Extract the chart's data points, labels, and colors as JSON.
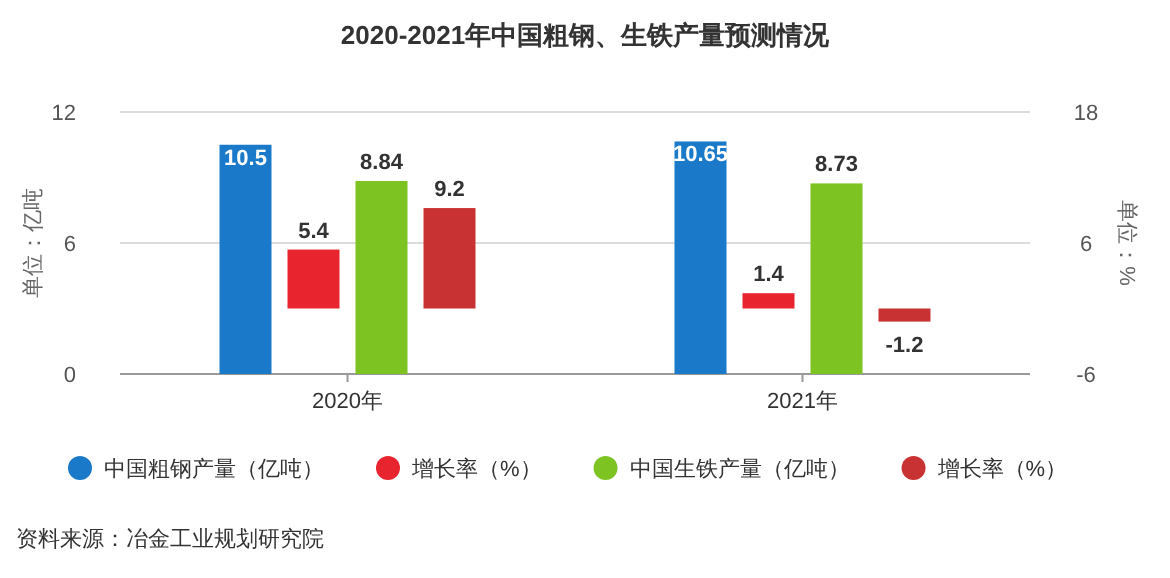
{
  "chart_data": {
    "type": "bar",
    "title": "2020-2021年中国粗钢、生铁产量预测情况",
    "categories": [
      "2020年",
      "2021年"
    ],
    "ylabel": "单位：亿吨",
    "y2label": "单位：%",
    "ylim": [
      0,
      12
    ],
    "yticks": [
      0,
      6,
      12
    ],
    "y2lim": [
      -6,
      18
    ],
    "y2ticks": [
      -6,
      6,
      18
    ],
    "series": [
      {
        "name": "中国粗钢产量（亿吨）",
        "color": "#1a7ac9",
        "values": [
          10.5,
          10.65
        ]
      },
      {
        "name": "增长率（%）",
        "color": "#e8242f",
        "values": [
          5.4,
          1.4
        ],
        "axis": "y2"
      },
      {
        "name": "中国生铁产量（亿吨）",
        "color": "#7dc423",
        "values": [
          8.84,
          8.73
        ]
      },
      {
        "name": "增长率（%）",
        "color": "#c93232",
        "values": [
          9.2,
          -1.2
        ],
        "axis": "y2"
      }
    ],
    "data_labels": true,
    "grid": "y",
    "legend": "bottom",
    "annotations": [
      "资料来源：冶金工业规划研究院"
    ]
  }
}
